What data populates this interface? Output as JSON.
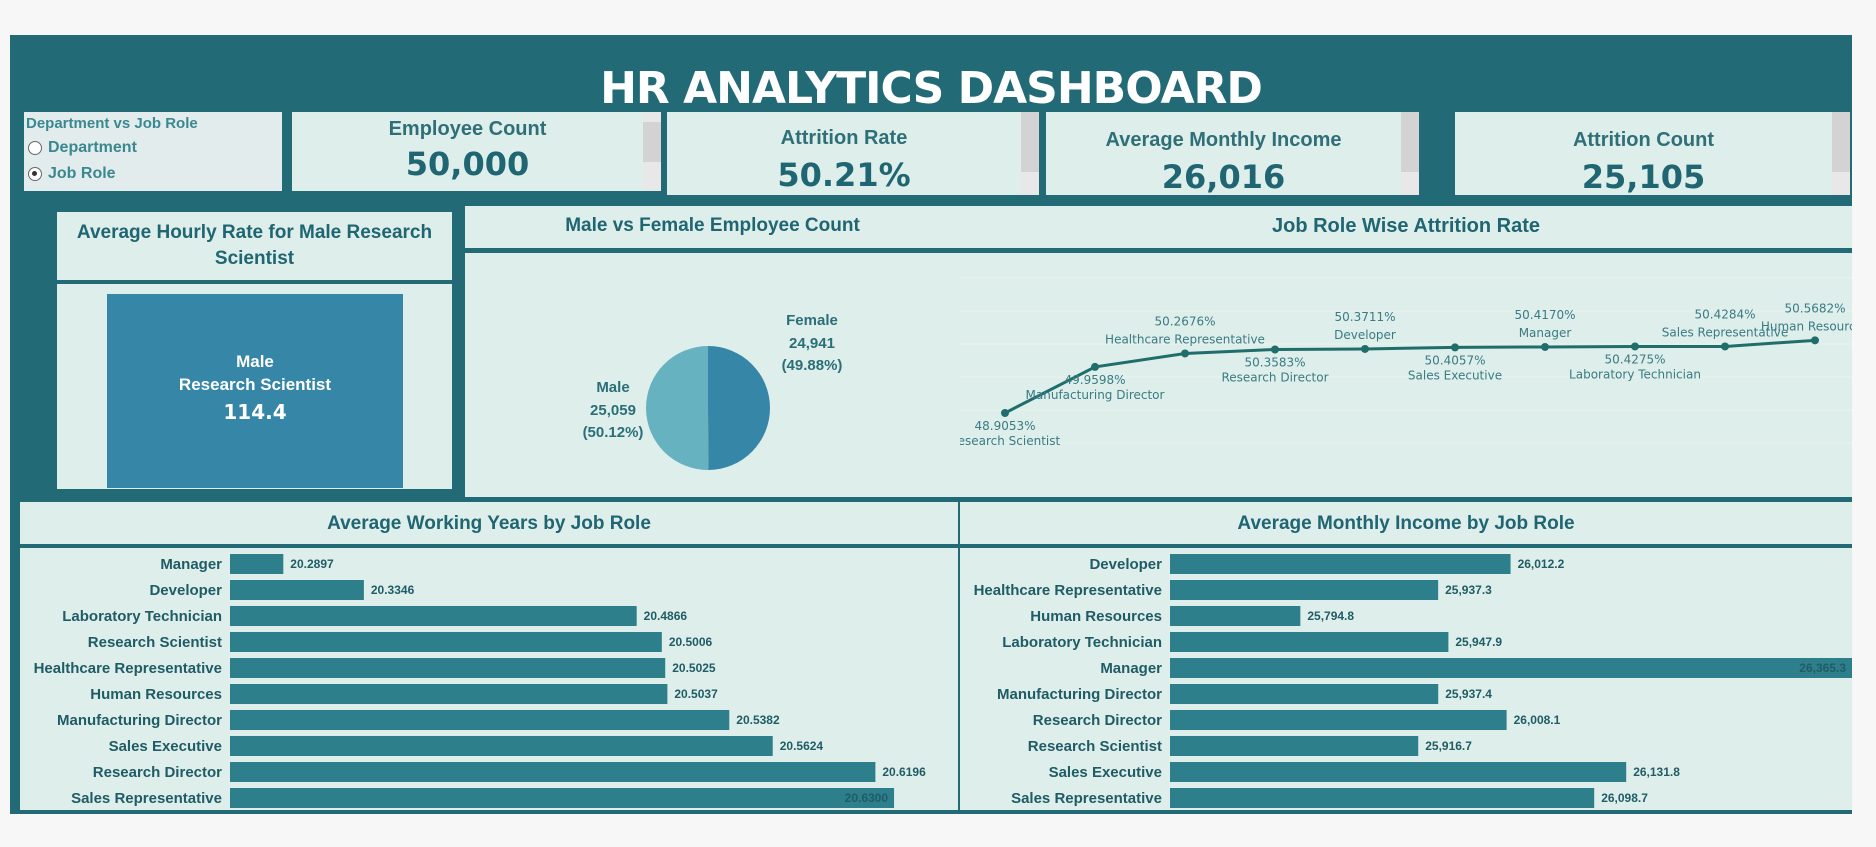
{
  "title": "HR ANALYTICS DASHBOARD",
  "colors": {
    "dark": "#236a77",
    "panel": "#deeeea",
    "bar": "#2e7f8c",
    "tile": "#3686a7",
    "pie_male": "#66b2c0",
    "pie_female": "#3686a7"
  },
  "toggle": {
    "title": "Department vs Job Role",
    "options": [
      {
        "label": "Department",
        "selected": false
      },
      {
        "label": "Job Role",
        "selected": true
      }
    ]
  },
  "kpis": {
    "employee_count": {
      "label": "Employee Count",
      "value": "50,000"
    },
    "attrition_rate": {
      "label": "Attrition Rate",
      "value": "50.21%"
    },
    "avg_income": {
      "label": "Average Monthly Income",
      "value": "26,016"
    },
    "attrition_count": {
      "label": "Attrition Count",
      "value": "25,105"
    }
  },
  "hourly": {
    "title": "Average Hourly Rate for Male Research Scientist",
    "line1": "Male",
    "line2": "Research Scientist",
    "value": "114.4"
  },
  "pie": {
    "title": "Male vs Female Employee Count",
    "male": {
      "label": "Male",
      "count": "25,059",
      "pct": "(50.12%)",
      "share": 50.12
    },
    "female": {
      "label": "Female",
      "count": "24,941",
      "pct": "(49.88%)",
      "share": 49.88
    }
  },
  "chart_data": [
    {
      "type": "line",
      "title": "Job Role Wise Attrition Rate",
      "categories": [
        "Research Scientist",
        "Manufacturing Director",
        "Healthcare Representative",
        "Research Director",
        "Developer",
        "Sales Executive",
        "Manager",
        "Laboratory Technician",
        "Sales Representative",
        "Human Resources"
      ],
      "values": [
        48.9053,
        49.9598,
        50.2676,
        50.3583,
        50.3711,
        50.4057,
        50.417,
        50.4275,
        50.4284,
        50.5682
      ],
      "labels": [
        "48.9053%",
        "49.9598%",
        "50.2676%",
        "50.3583%",
        "50.3711%",
        "50.4057%",
        "50.4170%",
        "50.4275%",
        "50.4284%",
        "50.5682%"
      ],
      "ylim": [
        48.5,
        51.5
      ]
    },
    {
      "type": "bar",
      "orientation": "horizontal",
      "title": "Average Working Years by Job Role",
      "categories": [
        "Manager",
        "Developer",
        "Laboratory Technician",
        "Research Scientist",
        "Healthcare Representative",
        "Human Resources",
        "Manufacturing Director",
        "Sales Executive",
        "Research Director",
        "Sales Representative"
      ],
      "values": [
        20.2897,
        20.3346,
        20.4866,
        20.5006,
        20.5025,
        20.5037,
        20.5382,
        20.5624,
        20.6196,
        20.63
      ],
      "labels": [
        "20.2897",
        "20.3346",
        "20.4866",
        "20.5006",
        "20.5025",
        "20.5037",
        "20.5382",
        "20.5624",
        "20.6196",
        "20.6300"
      ],
      "xlim": [
        20.26,
        20.64
      ]
    },
    {
      "type": "bar",
      "orientation": "horizontal",
      "title": "Average Monthly Income by Job Role",
      "categories": [
        "Developer",
        "Healthcare Representative",
        "Human Resources",
        "Laboratory Technician",
        "Manager",
        "Manufacturing Director",
        "Research Director",
        "Research Scientist",
        "Sales Executive",
        "Sales Representative"
      ],
      "values": [
        26012.2,
        25937.3,
        25794.8,
        25947.9,
        26365.3,
        25937.4,
        26008.1,
        25916.7,
        26131.8,
        26098.7
      ],
      "labels": [
        "26,012.2",
        "25,937.3",
        "25,794.8",
        "25,947.9",
        "26,365.3",
        "25,937.4",
        "26,008.1",
        "25,916.7",
        "26,131.8",
        "26,098.7"
      ],
      "xlim": [
        25660,
        26365.3
      ]
    }
  ]
}
